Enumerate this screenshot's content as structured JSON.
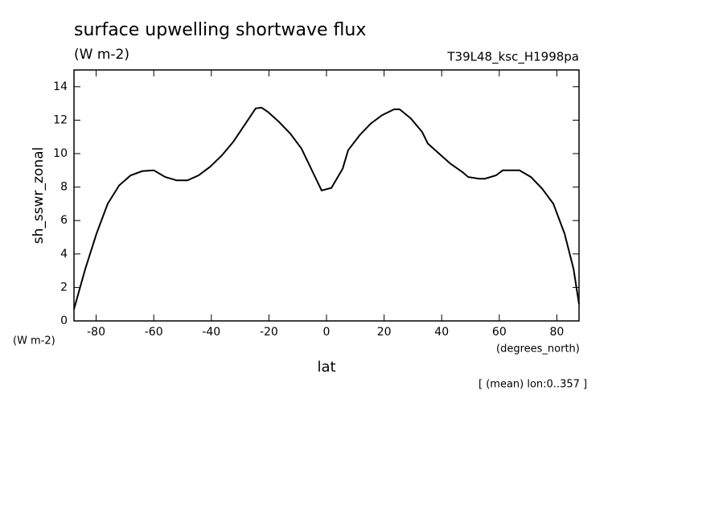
{
  "chart_data": {
    "type": "line",
    "title": "surface upwelling shortwave flux",
    "subtitle": "(W m-2)",
    "run_label": "T39L48_ksc_H1998pa",
    "y_label": "sh_sswr_zonal",
    "y_unit": "(W m-2)",
    "x_label": "lat",
    "x_unit": "(degrees_north)",
    "footnote": "[ (mean) lon:0..357 ]",
    "color": "#000000",
    "x": [
      -87.7,
      -83.8,
      -79.9,
      -76,
      -72,
      -68,
      -64,
      -60,
      -56,
      -52,
      -48.3,
      -44.4,
      -40.5,
      -36.3,
      -32.4,
      -28.5,
      -24.6,
      -22.6,
      -20.4,
      -16.5,
      -12.6,
      -8.7,
      -4.5,
      -1.7,
      1.7,
      5.6,
      7.5,
      11.5,
      15.4,
      19.3,
      23.5,
      25.4,
      29.3,
      33.2,
      35.2,
      39.1,
      43,
      47.2,
      49.2,
      53.1,
      55,
      58.9,
      61.2,
      67,
      71,
      74.9,
      78.8,
      82.7,
      85.8,
      87.7
    ],
    "values": [
      0.7,
      3.1,
      5.2,
      7.0,
      8.1,
      8.7,
      8.95,
      9.0,
      8.6,
      8.4,
      8.4,
      8.7,
      9.2,
      9.9,
      10.7,
      11.7,
      12.7,
      12.75,
      12.5,
      11.9,
      11.2,
      10.3,
      8.8,
      7.8,
      7.95,
      9.1,
      10.2,
      11.1,
      11.8,
      12.3,
      12.65,
      12.65,
      12.1,
      11.3,
      10.6,
      10.0,
      9.4,
      8.9,
      8.6,
      8.5,
      8.5,
      8.7,
      9.0,
      9.0,
      8.6,
      7.9,
      7.0,
      5.2,
      3.1,
      1.0
    ],
    "xlim": [
      -87.7,
      87.7
    ],
    "xticks": [
      -80,
      -60,
      -40,
      -20,
      0,
      20,
      40,
      60,
      80
    ],
    "ylim": [
      0,
      15
    ],
    "yticks": [
      0,
      2,
      4,
      6,
      8,
      10,
      12,
      14
    ]
  }
}
